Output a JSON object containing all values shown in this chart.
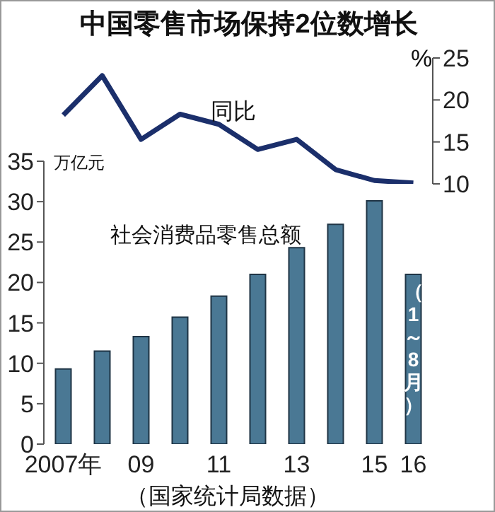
{
  "chart_data": [
    {
      "type": "line",
      "title": "中国零售市场保持2位数增长",
      "ylabel": "%",
      "categories": [
        null,
        null,
        null,
        null,
        null,
        null,
        null,
        null,
        null,
        null
      ],
      "series": [
        {
          "name": "同比",
          "color": "#1b2f6b",
          "values": [
            18.2,
            22.9,
            15.3,
            18.3,
            17.1,
            14.1,
            15.3,
            11.7,
            10.4,
            10.1
          ]
        }
      ],
      "ylim": [
        10,
        25
      ],
      "yticks": [
        10,
        15,
        20,
        25
      ],
      "grid": false,
      "legend": false,
      "marker": "none"
    },
    {
      "type": "bar",
      "ylabel": "万亿元",
      "categories": [
        "2007年",
        null,
        "09",
        null,
        "11",
        null,
        "13",
        null,
        "15",
        "16"
      ],
      "series": [
        {
          "name": "社会消费品零售总额",
          "color": "#4a7894",
          "values": [
            9.3,
            11.5,
            13.3,
            15.7,
            18.3,
            21.0,
            24.3,
            27.2,
            30.1,
            21.0
          ]
        }
      ],
      "ylim": [
        0,
        35
      ],
      "yticks": [
        0,
        5,
        10,
        15,
        20,
        25,
        30,
        35
      ],
      "grid": false,
      "legend": false,
      "annotations": [
        {
          "text": "（1～8月）",
          "x": "16",
          "y": 11
        },
        "（国家统计局数据）"
      ]
    }
  ]
}
